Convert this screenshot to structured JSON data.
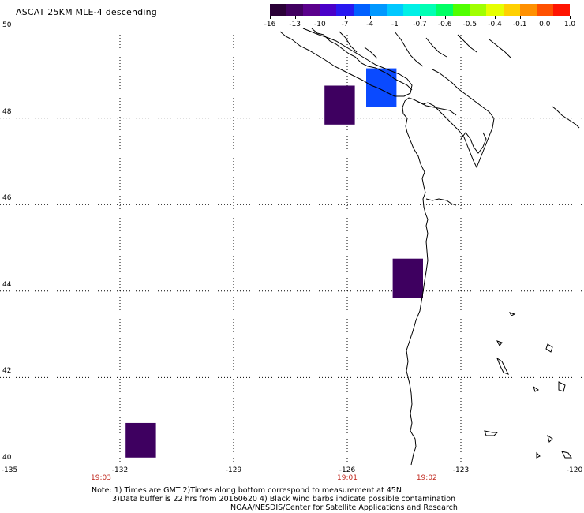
{
  "title": "ASCAT 25KM MLE-4 descending",
  "colorbar": {
    "colors": [
      "#2a0037",
      "#410060",
      "#5a008c",
      "#4a00c8",
      "#2818f0",
      "#0060ff",
      "#0098ff",
      "#00c8ff",
      "#00f0e6",
      "#00ffb4",
      "#00ff64",
      "#50ff00",
      "#a0ff00",
      "#e6ff00",
      "#ffd000",
      "#ff9000",
      "#ff5000",
      "#ff1400"
    ],
    "labels": [
      "-16",
      "-13",
      "-10",
      "-7",
      "-4",
      "-1",
      "-0.7",
      "-0.6",
      "-0.5",
      "-0.4",
      "-0.1",
      "0.0",
      "1.0"
    ]
  },
  "map": {
    "lon_labels": [
      "-135",
      "-132",
      "-129",
      "-126",
      "-123",
      "-120"
    ],
    "lat_labels": [
      "50",
      "48",
      "46",
      "44",
      "42",
      "40"
    ],
    "time_labels": [
      {
        "lon": -132.5,
        "text": "19:03"
      },
      {
        "lon": -126.0,
        "text": "19:01"
      },
      {
        "lon": -123.9,
        "text": "19:02"
      }
    ],
    "cells": [
      {
        "lon0": -126.6,
        "lon1": -125.8,
        "lat0": 47.85,
        "lat1": 48.75,
        "color": "#3e0060"
      },
      {
        "lon0": -125.5,
        "lon1": -124.7,
        "lat0": 48.25,
        "lat1": 49.15,
        "color": "#0a4aff"
      },
      {
        "lon0": -124.8,
        "lon1": -124.0,
        "lat0": 43.85,
        "lat1": 44.75,
        "color": "#3e0060"
      },
      {
        "lon0": -131.85,
        "lon1": -131.05,
        "lat0": 40.15,
        "lat1": 40.95,
        "color": "#3e0060"
      }
    ],
    "grid": true
  },
  "notes": {
    "line1": "Note: 1) Times are GMT 2)Times along bottom correspond to measurement at 45N",
    "line2": "3)Data buffer is 22 hrs from 20160620 4) Black wind barbs indicate possible contamination",
    "line3": "NOAA/NESDIS/Center for Satellite Applications and Research"
  }
}
